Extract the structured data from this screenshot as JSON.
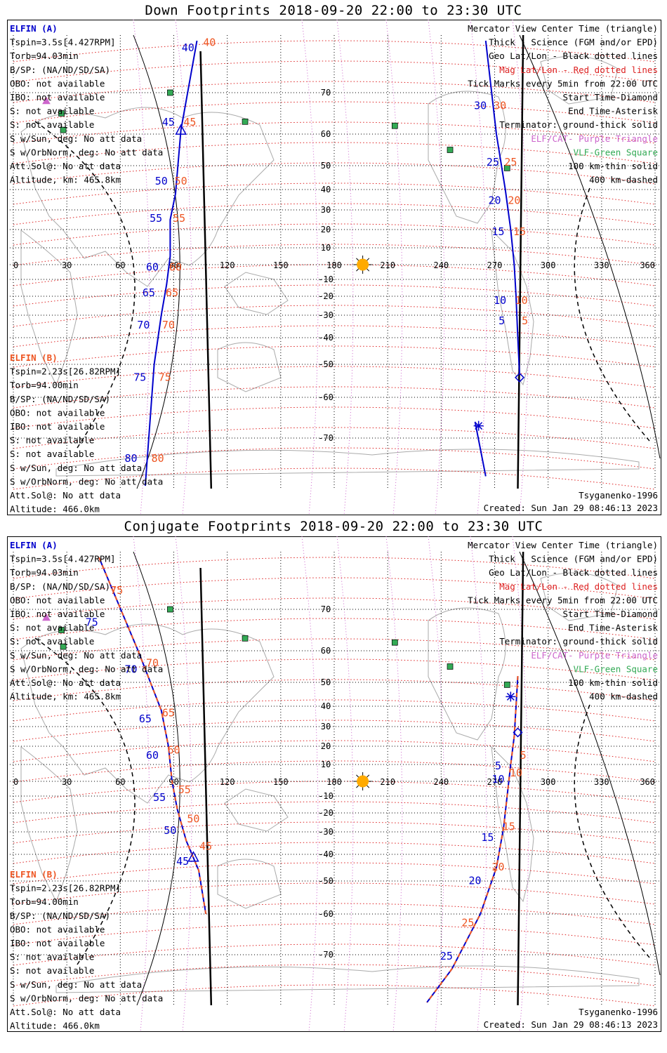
{
  "colors": {
    "blue": "#0000cc",
    "orange": "#ee5522",
    "mag_grid": "#dd2222",
    "purple": "#cc66cc",
    "green": "#33aa55",
    "land": "#aaaaaa",
    "black": "#000000",
    "sun": "#ffaa00"
  },
  "icons": {
    "start_marker": "diamond-icon",
    "end_marker": "asterisk-icon",
    "center_marker": "triangle-icon",
    "sun_marker": "sun-icon",
    "elf_station": "purple-triangle-icon",
    "vlf_station": "green-square-icon"
  },
  "panels": [
    {
      "title": "Down Footprints 2018-09-20 22:00 to 23:30 UTC",
      "elfin_a": [
        "ELFIN (A)",
        "Tspin=3.5s[4.427RPM]",
        "Torb=94.03min",
        "B/SP: (NA/ND/SD/SA)",
        "OBO: not available",
        "IBO: not available",
        "S: not available",
        "S: not available",
        "S w/Sun, deg: No att data",
        "S w/OrbNorm, deg: No att data",
        "Att.Sol@: No att data",
        "Altitude, km: 465.8km"
      ],
      "elfin_b": [
        "ELFIN (B)",
        "Tspin=2.23s[26.82RPM]",
        "Torb=94.00min",
        "B/SP: (NA/ND/SD/SA)",
        "OBO: not available",
        "IBO: not available",
        "S: not available",
        "S: not available",
        "S w/Sun, deg: No att data",
        "S w/OrbNorm, deg: No att data",
        "Att.Sol@: No att data",
        "Altitude: 466.0km"
      ],
      "legend": [
        "Mercator View Center Time (triangle)",
        "Thick - Science (FGM and/or EPD)",
        "Geo Lat/Lon - Black dotted lines",
        "Mag Lat/Lon - Red dotted lines",
        "Tick Marks every 5min from 22:00 UTC",
        "Start Time-Diamond",
        "End Time-Asterisk",
        "Terminator: ground-thick solid",
        "ELF/CAT- Purple Triangle",
        "VLF-Green Square",
        "100 km-thin solid",
        "400 km-dashed"
      ],
      "credit": "Tsyganenko-1996",
      "created": "Created: Sun Jan 29 08:46:13 2023"
    },
    {
      "title": "Conjugate Footprints 2018-09-20 22:00 to 23:30 UTC",
      "elfin_a": [
        "ELFIN (A)",
        "Tspin=3.5s[4.427RPM]",
        "Torb=94.03min",
        "B/SP: (NA/ND/SD/SA)",
        "OBO: not available",
        "IBO: not available",
        "S: not available",
        "S: not available",
        "S w/Sun, deg: No att data",
        "S w/OrbNorm, deg: No att data",
        "Att.Sol@: No att data",
        "Altitude, km: 465.8km"
      ],
      "elfin_b": [
        "ELFIN (B)",
        "Tspin=2.23s[26.82RPM]",
        "Torb=94.00min",
        "B/SP: (NA/ND/SD/SA)",
        "OBO: not available",
        "IBO: not available",
        "S: not available",
        "S: not available",
        "S w/Sun, deg: No att data",
        "S w/OrbNorm, deg: No att data",
        "Att.Sol@: No att data",
        "Altitude: 466.0km"
      ],
      "legend": [
        "Mercator View Center Time (triangle)",
        "Thick - Science (FGM and/or EPD)",
        "Geo Lat/Lon - Black dotted lines",
        "Mag Lat/Lon - Red dotted lines",
        "Tick Marks every 5min from 22:00 UTC",
        "Start Time-Diamond",
        "End Time-Asterisk",
        "Terminator: ground-thick solid",
        "ELF/CAT- Purple Triangle",
        "VLF-Green Square",
        "100 km-thin solid",
        "400 km-dashed"
      ],
      "credit": "Tsyganenko-1996",
      "created": "Created: Sun Jan 29 08:46:13 2023"
    }
  ],
  "chart_data": [
    {
      "type": "scatter",
      "title": "Down Footprints 2018-09-20 22:00 to 23:30 UTC",
      "projection": "mercator",
      "xlim": [
        0,
        360
      ],
      "ylim": [
        -80,
        80
      ],
      "x_ticks": [
        0,
        30,
        60,
        90,
        120,
        150,
        180,
        210,
        240,
        270,
        300,
        330,
        360
      ],
      "y_ticks": [
        -70,
        -60,
        -50,
        -40,
        -30,
        -20,
        -10,
        0,
        10,
        20,
        30,
        40,
        50,
        60,
        70
      ],
      "grid": true,
      "sun": {
        "lon": 196,
        "lat": 0
      },
      "terminator_lon": [
        [
          109,
          80
        ],
        [
          112,
          -80
        ],
        [
          284,
          80
        ],
        [
          282,
          -80
        ]
      ],
      "elf_stations": [
        {
          "lon": 18.5,
          "lat": 68
        }
      ],
      "vlf_stations": [
        {
          "lon": 88,
          "lat": 70
        },
        {
          "lon": 27,
          "lat": 65
        },
        {
          "lon": 28,
          "lat": 61
        },
        {
          "lon": 130,
          "lat": 63
        },
        {
          "lon": 214,
          "lat": 62
        },
        {
          "lon": 245,
          "lat": 55
        },
        {
          "lon": 277,
          "lat": 49
        }
      ],
      "series": [
        {
          "track": "A",
          "labels_blue": [
            {
              "t": "40",
              "lon": 98,
              "lat": 78
            },
            {
              "t": "45",
              "lon": 87,
              "lat": 62
            },
            {
              "t": "50",
              "lon": 83,
              "lat": 42
            },
            {
              "t": "55",
              "lon": 80,
              "lat": 24
            },
            {
              "t": "60",
              "lon": 78,
              "lat": -4
            },
            {
              "t": "65",
              "lon": 76,
              "lat": -20
            },
            {
              "t": "70",
              "lon": 73,
              "lat": -36
            },
            {
              "t": "75",
              "lon": 71,
              "lat": -55
            },
            {
              "t": "80",
              "lon": 66,
              "lat": -75
            }
          ],
          "labels_orange": [
            {
              "t": "40",
              "lon": 110,
              "lat": 79
            },
            {
              "t": "45",
              "lon": 99,
              "lat": 62
            },
            {
              "t": "50",
              "lon": 94,
              "lat": 42
            },
            {
              "t": "55",
              "lon": 93,
              "lat": 24
            },
            {
              "t": "60",
              "lon": 91,
              "lat": -4
            },
            {
              "t": "65",
              "lon": 89,
              "lat": -20
            },
            {
              "t": "70",
              "lon": 87,
              "lat": -36
            },
            {
              "t": "75",
              "lon": 85,
              "lat": -55
            },
            {
              "t": "80",
              "lon": 81,
              "lat": -75
            }
          ],
          "points": [
            [
              103,
              80
            ],
            [
              94,
              61
            ],
            [
              91,
              38
            ],
            [
              88,
              25
            ],
            [
              88,
              5
            ],
            [
              86,
              -13
            ],
            [
              83,
              -30
            ],
            [
              79,
              -50
            ],
            [
              74,
              -80
            ]
          ],
          "center_marker": {
            "lon": 94,
            "lat": 61
          }
        },
        {
          "track": "B",
          "labels_blue": [
            {
              "t": "30",
              "lon": 262,
              "lat": 66
            },
            {
              "t": "25",
              "lon": 269,
              "lat": 50
            },
            {
              "t": "20",
              "lon": 270,
              "lat": 33
            },
            {
              "t": "15",
              "lon": 272,
              "lat": 17
            },
            {
              "t": "10",
              "lon": 273,
              "lat": -24
            },
            {
              "t": "5",
              "lon": 274,
              "lat": -34
            }
          ],
          "labels_orange": [
            {
              "t": "30",
              "lon": 273,
              "lat": 66
            },
            {
              "t": "25",
              "lon": 279,
              "lat": 50
            },
            {
              "t": "20",
              "lon": 281,
              "lat": 33
            },
            {
              "t": "15",
              "lon": 284,
              "lat": 17
            },
            {
              "t": "10",
              "lon": 285,
              "lat": -24
            },
            {
              "t": "5",
              "lon": 287,
              "lat": -34
            }
          ],
          "points": [
            [
              265,
              80
            ],
            [
              271,
              60
            ],
            [
              276,
              40
            ],
            [
              279,
              20
            ],
            [
              281,
              0
            ],
            [
              282,
              -20
            ],
            [
              283,
              -40
            ],
            [
              284,
              -53
            ]
          ],
          "start_marker": {
            "lon": 284,
            "lat": -54
          },
          "end_marker": {
            "lon": 261,
            "lat": -67
          },
          "end_points": [
            [
              259,
              -66
            ],
            [
              265,
              -78
            ]
          ]
        }
      ]
    },
    {
      "type": "scatter",
      "title": "Conjugate Footprints 2018-09-20 22:00 to 23:30 UTC",
      "projection": "mercator",
      "xlim": [
        0,
        360
      ],
      "ylim": [
        -80,
        80
      ],
      "x_ticks": [
        0,
        30,
        60,
        90,
        120,
        150,
        180,
        210,
        240,
        270,
        300,
        330,
        360
      ],
      "y_ticks": [
        -70,
        -60,
        -50,
        -40,
        -30,
        -20,
        -10,
        0,
        10,
        20,
        30,
        40,
        50,
        60,
        70
      ],
      "grid": true,
      "sun": {
        "lon": 196,
        "lat": 0
      },
      "elf_stations": [
        {
          "lon": 18.5,
          "lat": 68
        }
      ],
      "vlf_stations": [
        {
          "lon": 88,
          "lat": 70
        },
        {
          "lon": 27,
          "lat": 65
        },
        {
          "lon": 28,
          "lat": 61
        },
        {
          "lon": 130,
          "lat": 63
        },
        {
          "lon": 214,
          "lat": 62
        },
        {
          "lon": 245,
          "lat": 55
        },
        {
          "lon": 277,
          "lat": 49
        }
      ],
      "series": [
        {
          "track": "A",
          "labels_blue": [
            {
              "t": "75",
              "lon": 44,
              "lat": 66
            },
            {
              "t": "70",
              "lon": 66,
              "lat": 53
            },
            {
              "t": "65",
              "lon": 74,
              "lat": 32
            },
            {
              "t": "60",
              "lon": 78,
              "lat": 13
            },
            {
              "t": "55",
              "lon": 82,
              "lat": -13
            },
            {
              "t": "50",
              "lon": 88,
              "lat": -31
            },
            {
              "t": "45",
              "lon": 95,
              "lat": -44
            }
          ],
          "labels_orange": [
            {
              "t": "75",
              "lon": 58,
              "lat": 73
            },
            {
              "t": "70",
              "lon": 78,
              "lat": 55
            },
            {
              "t": "65",
              "lon": 87,
              "lat": 35
            },
            {
              "t": "60",
              "lon": 90,
              "lat": 16
            },
            {
              "t": "55",
              "lon": 96,
              "lat": -8
            },
            {
              "t": "50",
              "lon": 101,
              "lat": -25
            },
            {
              "t": "45",
              "lon": 108,
              "lat": -38
            }
          ],
          "points": [
            [
              48,
              80
            ],
            [
              70,
              60
            ],
            [
              83,
              38
            ],
            [
              87,
              20
            ],
            [
              89,
              0
            ],
            [
              92,
              -18
            ],
            [
              97,
              -34
            ],
            [
              104,
              -46
            ],
            [
              108,
              -60
            ]
          ],
          "center_marker": {
            "lon": 101,
            "lat": -41
          }
        },
        {
          "track": "B",
          "labels_blue": [
            {
              "t": "5",
              "lon": 272,
              "lat": 7
            },
            {
              "t": "10",
              "lon": 272,
              "lat": -1
            },
            {
              "t": "15",
              "lon": 266,
              "lat": -34
            },
            {
              "t": "20",
              "lon": 259,
              "lat": -51
            },
            {
              "t": "25",
              "lon": 243,
              "lat": -71
            }
          ],
          "labels_orange": [
            {
              "t": "5",
              "lon": 286,
              "lat": 13
            },
            {
              "t": "10",
              "lon": 282,
              "lat": 3
            },
            {
              "t": "15",
              "lon": 278,
              "lat": -29
            },
            {
              "t": "20",
              "lon": 272,
              "lat": -46
            },
            {
              "t": "25",
              "lon": 255,
              "lat": -63
            }
          ],
          "points": [
            [
              283,
              52
            ],
            [
              282,
              40
            ],
            [
              281,
              25
            ],
            [
              279,
              10
            ],
            [
              277,
              -10
            ],
            [
              275,
              -28
            ],
            [
              271,
              -45
            ],
            [
              262,
              -60
            ],
            [
              246,
              -73
            ],
            [
              232,
              -80
            ]
          ],
          "start_marker": {
            "lon": 283,
            "lat": 27
          },
          "end_marker": {
            "lon": 279,
            "lat": 44
          }
        }
      ]
    }
  ]
}
